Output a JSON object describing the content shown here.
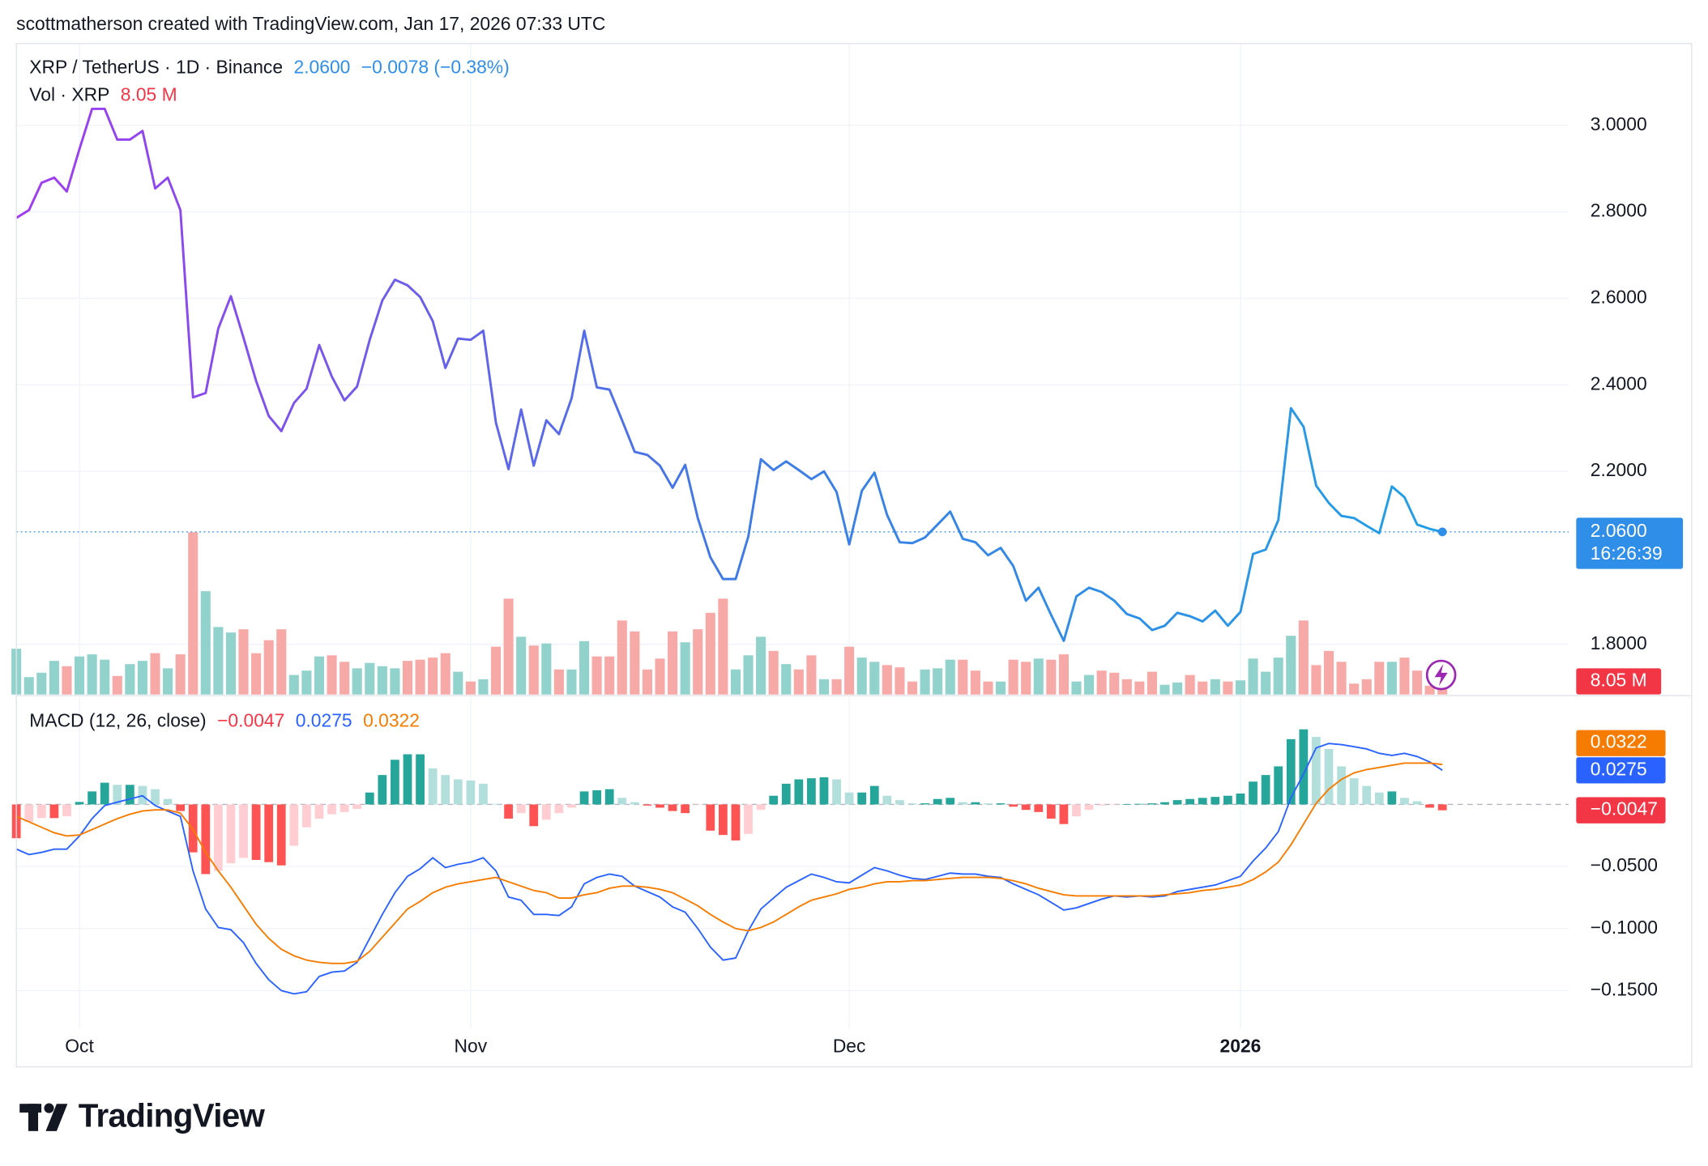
{
  "header": {
    "attribution": "scottmatherson created with TradingView.com, Jan 17, 2026 07:33 UTC"
  },
  "footer": {
    "logo": "TradingView"
  },
  "chart_data": [
    {
      "type": "line",
      "title": "XRP / TetherUS · 1D · Binance",
      "last_label": "2.0600",
      "change_label": "−0.0078 (−0.38%)",
      "countdown": "16:26:39",
      "legend_color": "#2f8fe8",
      "gradient": [
        "#a23bf0",
        "#3f7ae6",
        "#22a0e6"
      ],
      "ylim": [
        1.684,
        3.189
      ],
      "yticks": [
        {
          "value": 1.8,
          "label": "1.8000"
        },
        {
          "value": 2.2,
          "label": "2.2000"
        },
        {
          "value": 2.4,
          "label": "2.4000"
        },
        {
          "value": 2.6,
          "label": "2.6000"
        },
        {
          "value": 2.8,
          "label": "2.8000"
        },
        {
          "value": 3,
          "label": "3.0000"
        }
      ],
      "grid": true,
      "series": [
        {
          "values": [
            2.786,
            2.804,
            2.867,
            2.879,
            2.847,
            2.945,
            3.038,
            3.038,
            2.967,
            2.967,
            2.987,
            2.854,
            2.879,
            2.804,
            2.371,
            2.381,
            2.53,
            2.605,
            2.509,
            2.409,
            2.328,
            2.293,
            2.358,
            2.391,
            2.492,
            2.419,
            2.364,
            2.396,
            2.504,
            2.595,
            2.643,
            2.63,
            2.603,
            2.547,
            2.439,
            2.507,
            2.504,
            2.525,
            2.313,
            2.205,
            2.343,
            2.213,
            2.318,
            2.286,
            2.369,
            2.525,
            2.394,
            2.389,
            2.318,
            2.245,
            2.238,
            2.213,
            2.162,
            2.215,
            2.092,
            2.001,
            1.951,
            1.951,
            2.049,
            2.228,
            2.203,
            2.223,
            2.203,
            2.182,
            2.2,
            2.152,
            2.031,
            2.155,
            2.197,
            2.099,
            2.036,
            2.034,
            2.047,
            2.077,
            2.107,
            2.044,
            2.036,
            2.006,
            2.023,
            1.981,
            1.901,
            1.931,
            1.868,
            1.808,
            1.911,
            1.931,
            1.921,
            1.901,
            1.87,
            1.86,
            1.833,
            1.843,
            1.873,
            1.865,
            1.853,
            1.878,
            1.843,
            1.875,
            2.009,
            2.019,
            2.087,
            2.346,
            2.303,
            2.167,
            2.127,
            2.097,
            2.092,
            2.074,
            2.057,
            2.165,
            2.14,
            2.077,
            2.067,
            2.06
          ]
        }
      ]
    },
    {
      "type": "bar",
      "title": "Vol · XRP",
      "last_label": "8.05 M",
      "label_color": "#f23645",
      "color_up": "#92d2cc",
      "color_down": "#f7a9a7",
      "ylim": [
        0,
        400
      ],
      "values": [
        28.1,
        10.7,
        13.4,
        20.7,
        17.4,
        23.4,
        24.7,
        21.4,
        11.4,
        18.7,
        20.7,
        25.4,
        16.1,
        24.7,
        99.7,
        63.5,
        41.5,
        38.1,
        40.1,
        25.4,
        33.4,
        40.1,
        12.0,
        14.7,
        23.4,
        24.1,
        20.1,
        16.1,
        19.4,
        17.4,
        16.1,
        20.7,
        21.4,
        22.7,
        25.4,
        14.0,
        8.0,
        9.4,
        29.4,
        58.9,
        35.5,
        30.1,
        31.4,
        15.4,
        15.4,
        32.8,
        23.4,
        23.4,
        45.5,
        38.8,
        15.4,
        22.1,
        38.8,
        32.1,
        40.1,
        50.2,
        58.9,
        15.4,
        24.1,
        35.5,
        26.8,
        18.7,
        15.4,
        24.1,
        9.4,
        9.4,
        29.4,
        22.7,
        20.1,
        18.1,
        16.7,
        8.0,
        15.4,
        16.1,
        21.4,
        21.4,
        14.7,
        8.0,
        8.0,
        21.4,
        20.1,
        22.1,
        21.4,
        24.7,
        8.0,
        12.0,
        14.7,
        13.4,
        9.4,
        8.0,
        14.0,
        6.0,
        7.4,
        12.0,
        8.0,
        9.4,
        8.0,
        8.7,
        22.1,
        14.0,
        22.7,
        36.1,
        45.5,
        18.1,
        26.8,
        20.1,
        6.7,
        9.4,
        20.1,
        20.1,
        22.7,
        14.7,
        5.4,
        8.05
      ]
    },
    {
      "type": "macd",
      "title": "MACD (12, 26, close)",
      "ylim": [
        -0.1763,
        0.0868
      ],
      "yticks": [
        {
          "value": -0.05,
          "label": "−0.0500"
        },
        {
          "value": -0.1,
          "label": "−0.1000"
        },
        {
          "value": -0.15,
          "label": "−0.1500"
        }
      ],
      "xlim": [
        0,
        123
      ],
      "xticks": [
        {
          "value": 5,
          "label": "Oct"
        },
        {
          "value": 36,
          "label": "Nov"
        },
        {
          "value": 66,
          "label": "Dec"
        },
        {
          "value": 97,
          "label": "2026"
        }
      ],
      "series": [
        {
          "style": "histogram",
          "color": "#f23645",
          "last_label": "−0.0047",
          "colors": {
            "rise_pos": "#26a69a",
            "fall_pos": "#b2dfdb",
            "fall_neg": "#ff5252",
            "rise_neg": "#ffcdd2"
          },
          "values": [
            -0.0272,
            -0.014,
            -0.011,
            -0.011,
            -0.0096,
            0.002,
            0.0105,
            0.0175,
            0.0158,
            0.0158,
            0.0149,
            0.0123,
            0.0044,
            -0.0053,
            -0.0386,
            -0.0561,
            -0.0535,
            -0.0474,
            -0.043,
            -0.0447,
            -0.0465,
            -0.0491,
            -0.0333,
            -0.0184,
            -0.0114,
            -0.0079,
            -0.0061,
            -0.0035,
            0.0096,
            0.0237,
            0.036,
            0.0404,
            0.0404,
            0.029,
            0.0237,
            0.0202,
            0.0193,
            0.0167,
            0.0005,
            -0.0114,
            -0.007,
            -0.0175,
            -0.0123,
            -0.007,
            -0.0026,
            0.0105,
            0.0114,
            0.0123,
            0.0053,
            0.0018,
            -0.0009,
            -0.0026,
            -0.0053,
            -0.007,
            -0.0002,
            -0.0211,
            -0.0246,
            -0.029,
            -0.0237,
            -0.0044,
            0.007,
            0.0167,
            0.0202,
            0.0211,
            0.0219,
            0.0202,
            0.0096,
            0.0096,
            0.0149,
            0.007,
            0.0035,
            0.0009,
            0.0009,
            0.0044,
            0.0053,
            0.0018,
            0.0018,
            0.0009,
            0.0009,
            -0.0018,
            -0.0044,
            -0.0061,
            -0.0114,
            -0.0158,
            -0.0096,
            -0.0044,
            -0.0009,
            -0.0004,
            0.0003,
            0.0005,
            0.0009,
            0.0018,
            0.0035,
            0.0044,
            0.0053,
            0.0061,
            0.007,
            0.0088,
            0.0184,
            0.0237,
            0.0307,
            0.0526,
            0.0605,
            0.0544,
            0.0447,
            0.0307,
            0.0211,
            0.0149,
            0.0096,
            0.0105,
            0.0053,
            0.0026,
            -0.0026,
            -0.0047
          ]
        },
        {
          "style": "line",
          "color": "#2962ff",
          "last_label": "0.0275",
          "values": [
            -0.036,
            -0.0404,
            -0.0386,
            -0.036,
            -0.036,
            -0.0254,
            -0.0114,
            -0.0009,
            0.0018,
            0.0044,
            0.007,
            -0.0009,
            -0.0053,
            -0.0096,
            -0.0535,
            -0.0842,
            -0.0991,
            -0.1009,
            -0.1114,
            -0.1281,
            -0.1412,
            -0.15,
            -0.1526,
            -0.1509,
            -0.1386,
            -0.1351,
            -0.1342,
            -0.1272,
            -0.1079,
            -0.0886,
            -0.0711,
            -0.0579,
            -0.0518,
            -0.043,
            -0.0509,
            -0.0482,
            -0.0465,
            -0.043,
            -0.0535,
            -0.0746,
            -0.0772,
            -0.0886,
            -0.0886,
            -0.0895,
            -0.0825,
            -0.064,
            -0.0588,
            -0.0561,
            -0.0579,
            -0.0658,
            -0.0702,
            -0.0746,
            -0.0825,
            -0.0868,
            -0.1,
            -0.1149,
            -0.1254,
            -0.1237,
            -0.1018,
            -0.0842,
            -0.0754,
            -0.0667,
            -0.0614,
            -0.0561,
            -0.0588,
            -0.0623,
            -0.0632,
            -0.057,
            -0.0509,
            -0.0535,
            -0.057,
            -0.0596,
            -0.0605,
            -0.0579,
            -0.0553,
            -0.0561,
            -0.0561,
            -0.0579,
            -0.0588,
            -0.064,
            -0.0684,
            -0.0728,
            -0.0789,
            -0.0851,
            -0.0833,
            -0.0798,
            -0.0763,
            -0.0737,
            -0.0746,
            -0.0737,
            -0.0746,
            -0.0737,
            -0.0702,
            -0.0684,
            -0.0667,
            -0.0649,
            -0.0614,
            -0.0579,
            -0.0456,
            -0.0351,
            -0.0219,
            0.0053,
            0.0246,
            0.0456,
            0.0491,
            0.0482,
            0.0465,
            0.0447,
            0.0412,
            0.0395,
            0.0412,
            0.0386,
            0.0342,
            0.0275
          ]
        },
        {
          "style": "line",
          "color": "#f57c00",
          "last_label": "0.0322",
          "values": [
            -0.0096,
            -0.014,
            -0.0184,
            -0.0228,
            -0.0254,
            -0.0246,
            -0.0202,
            -0.0158,
            -0.0114,
            -0.0079,
            -0.0053,
            -0.0044,
            -0.0044,
            -0.007,
            -0.0202,
            -0.0386,
            -0.0535,
            -0.0667,
            -0.0816,
            -0.0965,
            -0.1079,
            -0.1167,
            -0.1219,
            -0.1254,
            -0.1272,
            -0.1281,
            -0.1281,
            -0.1263,
            -0.1184,
            -0.107,
            -0.0956,
            -0.0842,
            -0.0781,
            -0.0711,
            -0.0667,
            -0.064,
            -0.0623,
            -0.0605,
            -0.0588,
            -0.0623,
            -0.0658,
            -0.0693,
            -0.0711,
            -0.0754,
            -0.0754,
            -0.0728,
            -0.0711,
            -0.0675,
            -0.0658,
            -0.0658,
            -0.0667,
            -0.0684,
            -0.0711,
            -0.0763,
            -0.0816,
            -0.0886,
            -0.0947,
            -0.1,
            -0.1018,
            -0.0991,
            -0.0947,
            -0.0886,
            -0.0825,
            -0.0772,
            -0.0746,
            -0.072,
            -0.0684,
            -0.0667,
            -0.064,
            -0.0623,
            -0.0623,
            -0.0614,
            -0.0614,
            -0.0605,
            -0.0596,
            -0.0588,
            -0.0588,
            -0.0588,
            -0.0596,
            -0.0614,
            -0.064,
            -0.0675,
            -0.0702,
            -0.0728,
            -0.0737,
            -0.0737,
            -0.0737,
            -0.0737,
            -0.0737,
            -0.0737,
            -0.0737,
            -0.0728,
            -0.072,
            -0.0711,
            -0.0693,
            -0.0684,
            -0.0667,
            -0.0649,
            -0.0605,
            -0.0544,
            -0.0465,
            -0.0325,
            -0.0158,
            0.0009,
            0.0123,
            0.0202,
            0.0254,
            0.0281,
            0.0298,
            0.0316,
            0.0333,
            0.0333,
            0.0333,
            0.0322
          ]
        }
      ]
    }
  ]
}
